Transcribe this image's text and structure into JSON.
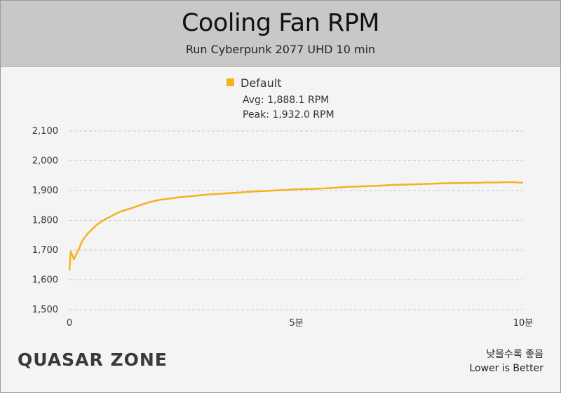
{
  "header": {
    "title": "Cooling Fan RPM",
    "subtitle": "Run Cyberpunk 2077 UHD 10 min"
  },
  "footer": {
    "logo": "QUASAR ZONE",
    "note_ko": "낮을수록 좋음",
    "note_en": "Lower is Better"
  },
  "colors": {
    "series": "#f5b21d",
    "grid": "#c8c8c8",
    "header_bg": "#c8c8c8",
    "plot_bg": "#f4f4f4"
  },
  "chart_data": {
    "type": "line",
    "title": "Cooling Fan RPM",
    "subtitle": "Run Cyberpunk 2077 UHD 10 min",
    "xlabel": "",
    "ylabel": "",
    "xlim": [
      0,
      10
    ],
    "ylim": [
      1500,
      2100
    ],
    "x_ticks": [
      {
        "value": 0,
        "label": "0"
      },
      {
        "value": 5,
        "label": "5분"
      },
      {
        "value": 10,
        "label": "10분"
      }
    ],
    "y_ticks": [
      {
        "value": 1500,
        "label": "1,500"
      },
      {
        "value": 1600,
        "label": "1,600"
      },
      {
        "value": 1700,
        "label": "1,700"
      },
      {
        "value": 1800,
        "label": "1,800"
      },
      {
        "value": 1900,
        "label": "1,900"
      },
      {
        "value": 2000,
        "label": "2,000"
      },
      {
        "value": 2100,
        "label": "2,100"
      }
    ],
    "grid": true,
    "legend_position": "top-center",
    "series": [
      {
        "name": "Default",
        "avg_label": "Avg: 1,888.1 RPM",
        "peak_label": "Peak: 1,932.0 RPM",
        "x": [
          0,
          0.03,
          0.07,
          0.1,
          0.15,
          0.2,
          0.25,
          0.3,
          0.4,
          0.5,
          0.6,
          0.7,
          0.8,
          0.9,
          1.0,
          1.1,
          1.2,
          1.3,
          1.4,
          1.5,
          1.6,
          1.7,
          1.8,
          1.9,
          2.0,
          2.2,
          2.4,
          2.6,
          2.8,
          3.0,
          3.2,
          3.4,
          3.6,
          3.8,
          4.0,
          4.2,
          4.4,
          4.6,
          4.8,
          5.0,
          5.2,
          5.4,
          5.6,
          5.8,
          6.0,
          6.2,
          6.4,
          6.6,
          6.8,
          7.0,
          7.2,
          7.4,
          7.6,
          7.8,
          8.0,
          8.2,
          8.4,
          8.6,
          8.8,
          9.0,
          9.2,
          9.4,
          9.6,
          9.8,
          10.0
        ],
        "values": [
          1632,
          1695,
          1680,
          1670,
          1685,
          1700,
          1720,
          1735,
          1755,
          1770,
          1785,
          1795,
          1805,
          1812,
          1820,
          1828,
          1833,
          1838,
          1842,
          1848,
          1853,
          1858,
          1862,
          1866,
          1869,
          1873,
          1877,
          1880,
          1883,
          1886,
          1888,
          1890,
          1892,
          1894,
          1896,
          1898,
          1899,
          1901,
          1902,
          1904,
          1905,
          1906,
          1907,
          1909,
          1911,
          1913,
          1914,
          1915,
          1916,
          1918,
          1919,
          1920,
          1921,
          1922,
          1923,
          1924,
          1925,
          1925,
          1926,
          1926,
          1927,
          1927,
          1928,
          1928,
          1926
        ]
      }
    ]
  }
}
